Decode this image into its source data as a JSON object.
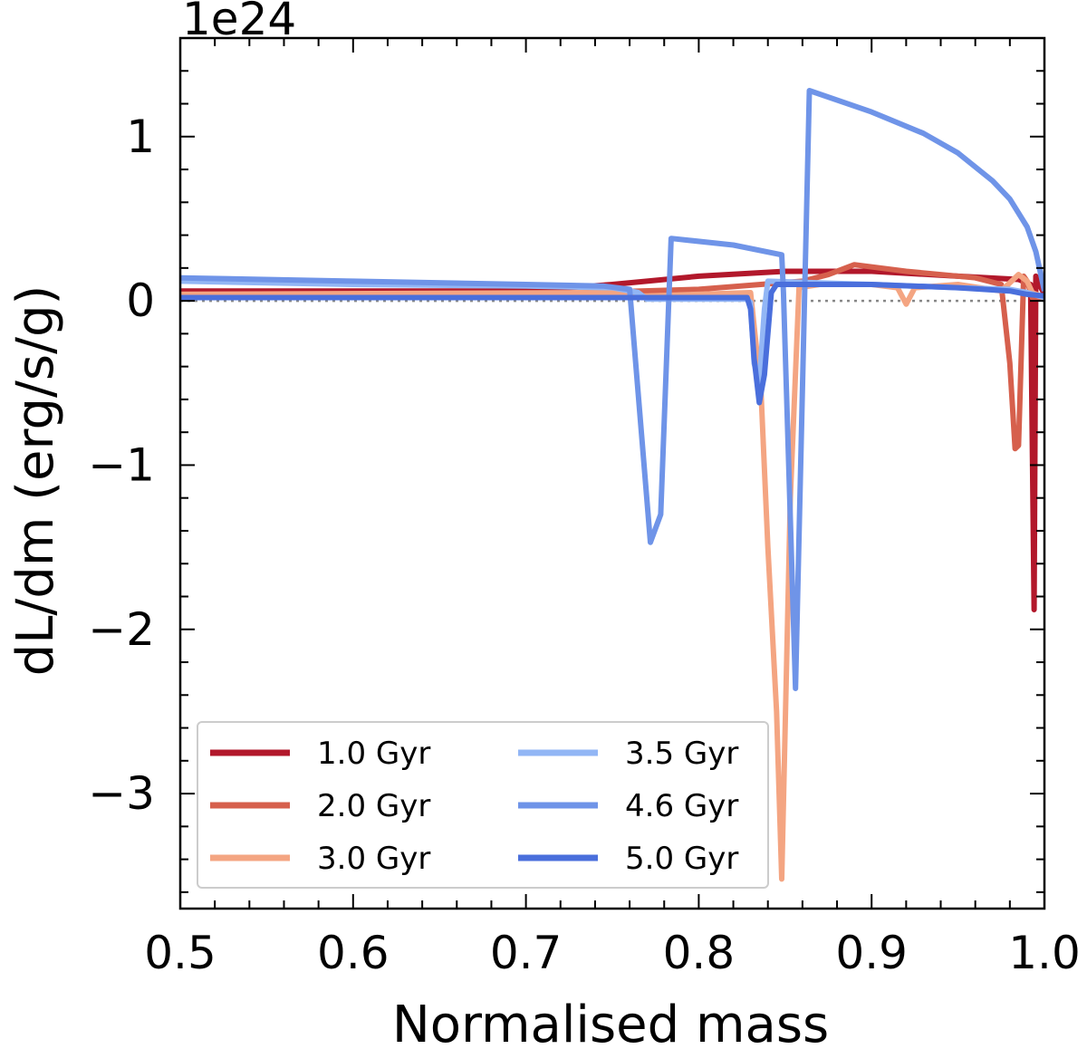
{
  "chart_data": {
    "type": "line",
    "title": "",
    "xlabel": "Normalised mass",
    "ylabel": "dL/dm (erg/s/g)",
    "offset_text": "1e24",
    "xlim": [
      0.5,
      1.0
    ],
    "ylim": [
      -3.7,
      1.6
    ],
    "xticks": [
      0.5,
      0.6,
      0.7,
      0.8,
      0.9,
      1.0
    ],
    "xtick_labels": [
      "0.5",
      "0.6",
      "0.7",
      "0.8",
      "0.9",
      "1.0"
    ],
    "yticks": [
      -3,
      -2,
      -1,
      0,
      1
    ],
    "ytick_labels": [
      "−3",
      "−2",
      "−1",
      "0",
      "1"
    ],
    "zero_line": true,
    "legend_position": "lower-left",
    "series": [
      {
        "name": "1.0 Gyr",
        "color": "#b2182b",
        "points": [
          [
            0.5,
            0.06
          ],
          [
            0.7,
            0.06
          ],
          [
            0.75,
            0.1
          ],
          [
            0.8,
            0.15
          ],
          [
            0.85,
            0.18
          ],
          [
            0.9,
            0.18
          ],
          [
            0.95,
            0.15
          ],
          [
            0.985,
            0.13
          ],
          [
            0.992,
            0.1
          ],
          [
            0.994,
            -1.88
          ],
          [
            0.995,
            0.15
          ],
          [
            0.998,
            0.08
          ],
          [
            1.0,
            0.04
          ]
        ]
      },
      {
        "name": "2.0 Gyr",
        "color": "#d6604d",
        "points": [
          [
            0.5,
            0.04
          ],
          [
            0.7,
            0.04
          ],
          [
            0.8,
            0.07
          ],
          [
            0.86,
            0.12
          ],
          [
            0.875,
            0.16
          ],
          [
            0.89,
            0.22
          ],
          [
            0.92,
            0.18
          ],
          [
            0.96,
            0.14
          ],
          [
            0.975,
            0.1
          ],
          [
            0.98,
            -0.38
          ],
          [
            0.983,
            -0.9
          ],
          [
            0.985,
            -0.88
          ],
          [
            0.988,
            0.15
          ],
          [
            0.99,
            0.12
          ],
          [
            0.993,
            0.02
          ],
          [
            1.0,
            0.02
          ]
        ]
      },
      {
        "name": "3.0 Gyr",
        "color": "#f4a582",
        "points": [
          [
            0.5,
            0.04
          ],
          [
            0.75,
            0.05
          ],
          [
            0.76,
            0.03
          ],
          [
            0.77,
            0.03
          ],
          [
            0.83,
            0.05
          ],
          [
            0.836,
            -0.55
          ],
          [
            0.84,
            -1.5
          ],
          [
            0.845,
            -2.5
          ],
          [
            0.848,
            -3.52
          ],
          [
            0.853,
            -1.2
          ],
          [
            0.858,
            0.08
          ],
          [
            0.87,
            0.1
          ],
          [
            0.9,
            0.1
          ],
          [
            0.915,
            0.08
          ],
          [
            0.92,
            -0.02
          ],
          [
            0.925,
            0.08
          ],
          [
            0.95,
            0.1
          ],
          [
            0.975,
            0.06
          ],
          [
            0.985,
            0.16
          ],
          [
            0.99,
            0.12
          ],
          [
            0.993,
            0.05
          ],
          [
            1.0,
            0.02
          ]
        ]
      },
      {
        "name": "3.5 Gyr",
        "color": "#92b6f5",
        "points": [
          [
            0.5,
            0.12
          ],
          [
            0.6,
            0.1
          ],
          [
            0.7,
            0.09
          ],
          [
            0.75,
            0.08
          ],
          [
            0.765,
            0.05
          ],
          [
            0.77,
            0.01
          ],
          [
            0.8,
            0.01
          ],
          [
            0.828,
            0.01
          ],
          [
            0.83,
            -0.01
          ],
          [
            0.832,
            -0.38
          ],
          [
            0.835,
            -0.5
          ],
          [
            0.838,
            -0.05
          ],
          [
            0.84,
            0.12
          ],
          [
            0.9,
            0.1
          ],
          [
            0.95,
            0.08
          ],
          [
            0.98,
            0.07
          ],
          [
            0.99,
            0.05
          ],
          [
            1.0,
            0.02
          ]
        ]
      },
      {
        "name": "4.6 Gyr",
        "color": "#6f94e8",
        "points": [
          [
            0.5,
            0.14
          ],
          [
            0.6,
            0.12
          ],
          [
            0.7,
            0.1
          ],
          [
            0.745,
            0.09
          ],
          [
            0.76,
            0.07
          ],
          [
            0.772,
            -1.47
          ],
          [
            0.778,
            -1.3
          ],
          [
            0.784,
            0.38
          ],
          [
            0.82,
            0.34
          ],
          [
            0.848,
            0.28
          ],
          [
            0.849,
            0.05
          ],
          [
            0.856,
            -2.36
          ],
          [
            0.864,
            1.28
          ],
          [
            0.9,
            1.15
          ],
          [
            0.93,
            1.02
          ],
          [
            0.95,
            0.9
          ],
          [
            0.97,
            0.73
          ],
          [
            0.98,
            0.62
          ],
          [
            0.99,
            0.45
          ],
          [
            0.995,
            0.3
          ],
          [
            1.0,
            0.06
          ]
        ]
      },
      {
        "name": "5.0 Gyr",
        "color": "#4a6fdc",
        "points": [
          [
            0.5,
            0.02
          ],
          [
            0.7,
            0.02
          ],
          [
            0.8,
            0.02
          ],
          [
            0.828,
            0.02
          ],
          [
            0.83,
            -0.05
          ],
          [
            0.832,
            -0.35
          ],
          [
            0.835,
            -0.62
          ],
          [
            0.838,
            -0.45
          ],
          [
            0.842,
            0.05
          ],
          [
            0.845,
            0.1
          ],
          [
            0.9,
            0.1
          ],
          [
            0.95,
            0.08
          ],
          [
            0.98,
            0.06
          ],
          [
            0.99,
            0.04
          ],
          [
            1.0,
            0.03
          ]
        ]
      }
    ]
  }
}
